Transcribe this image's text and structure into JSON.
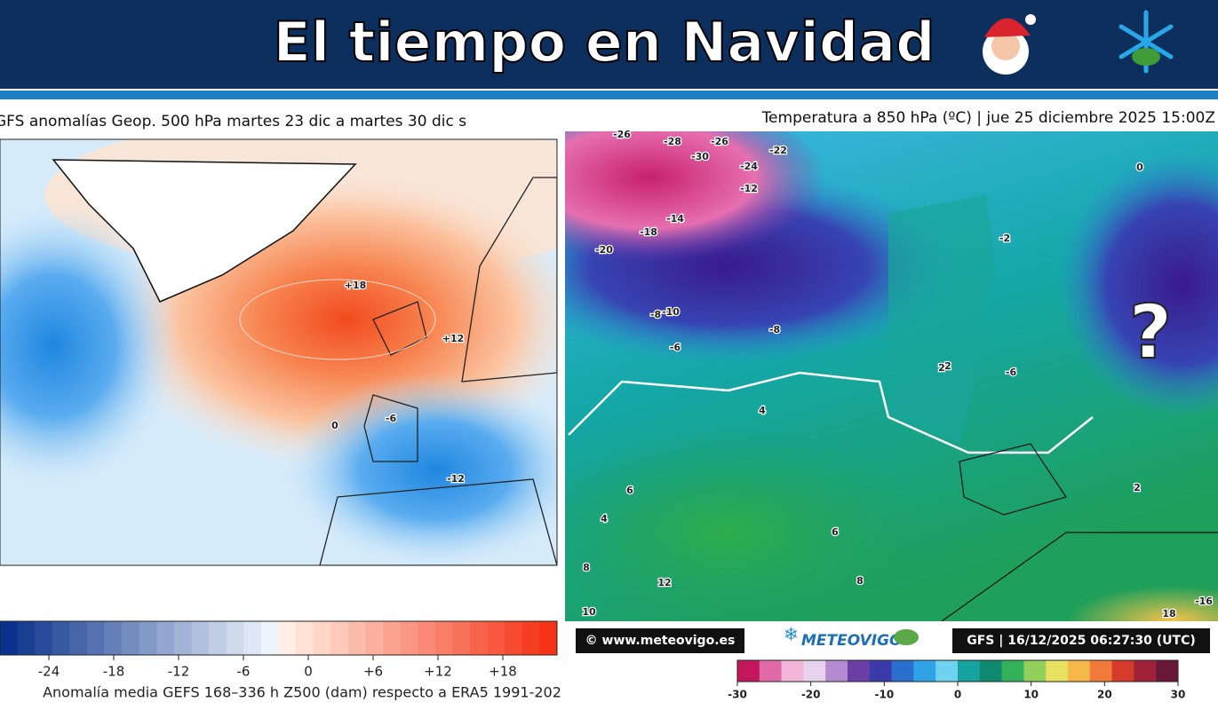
{
  "header": {
    "title": "El tiempo en Navidad"
  },
  "left_map": {
    "title": "GFS anomalías Geop. 500 hPa martes 23 dic a martes 30 dic s",
    "contour_labels": [
      "+18",
      "+12",
      "0",
      "-6",
      "-12"
    ],
    "colorbar_ticks": [
      "-24",
      "-18",
      "-12",
      "-6",
      "0",
      "+6",
      "+12",
      "+18"
    ],
    "caption": "Anomalía media GEFS 168–336 h Z500 (dam) respecto a ERA5 1991-202"
  },
  "right_map": {
    "title": "Temperatura a 850 hPa (ºC) | jue 25 diciembre 2025 15:00Z",
    "question": "?",
    "contour_labels": [
      "-26",
      "-28",
      "-30",
      "-26",
      "-24",
      "-12",
      "-14",
      "-18",
      "-20",
      "-22",
      "-10",
      "-8",
      "-6",
      "-8",
      "-6",
      "-2",
      "0",
      "2",
      "4",
      "6",
      "8",
      "10",
      "12",
      "18",
      "-16",
      "2",
      "4",
      "6",
      "8",
      "2"
    ],
    "credit": "© www.meteovigo.es",
    "brand": "METEOVIGO",
    "run": "GFS | 16/12/2025 06:27:30 (UTC)",
    "colorbar_ticks": [
      "-30",
      "-20",
      "-10",
      "0",
      "10",
      "20",
      "30"
    ]
  }
}
